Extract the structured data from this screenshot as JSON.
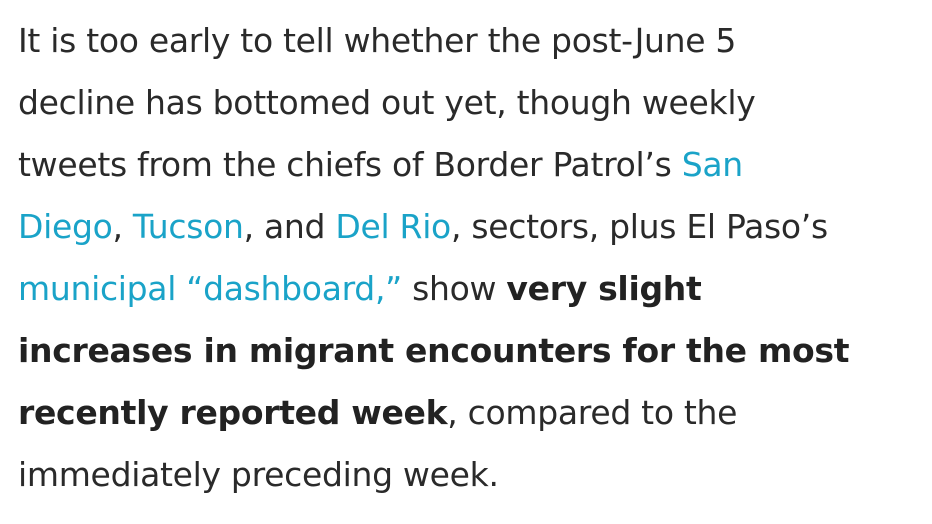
{
  "paragraph": {
    "l1": "It is too early to tell whether the post-June 5",
    "l2": "decline has bottomed out yet, though weekly",
    "l3_text": "tweets from the chiefs of Border Patrol’s ",
    "link_san_diego_part1": "San",
    "link_san_diego_part2": "Diego",
    "comma1": ", ",
    "link_tucson": "Tucson",
    "and_text": ", and ",
    "link_del_rio": "Del Rio",
    "l4_tail": ", sectors, plus El Paso’s",
    "link_dashboard": "municipal “dashboard,”",
    "show_text": " show ",
    "bold_part1": "very slight",
    "bold_part2": "increases in migrant encounters for the most",
    "bold_part3": "recently reported week",
    "l7_tail": ", compared to the",
    "l8": "immediately preceding week."
  },
  "colors": {
    "text": "#2a2a2a",
    "link": "#1aa3c8",
    "background": "#ffffff"
  }
}
